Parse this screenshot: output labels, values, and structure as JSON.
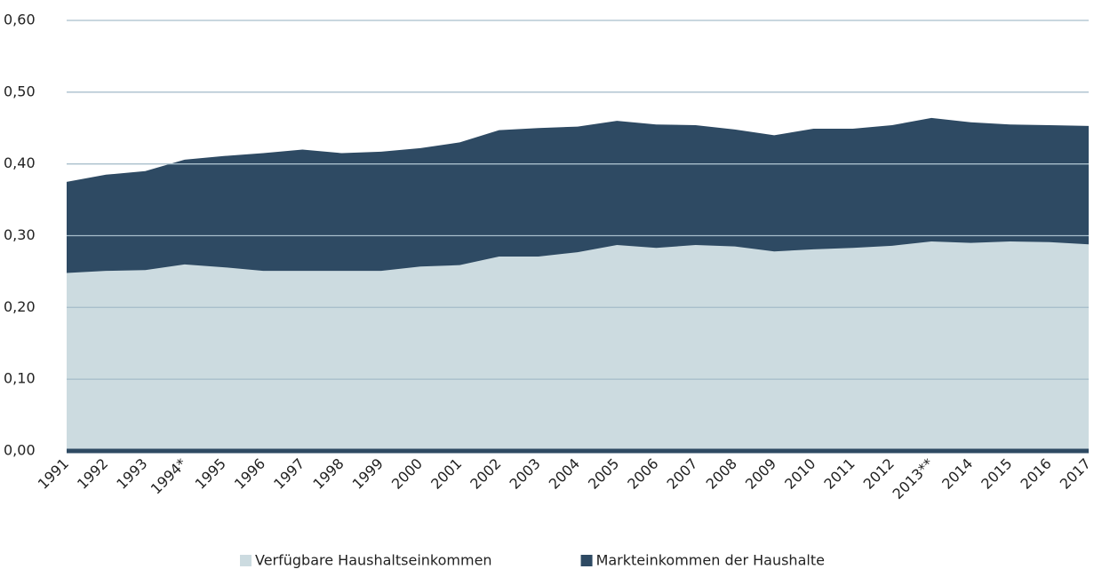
{
  "chart_data": {
    "type": "area",
    "categories": [
      "1991",
      "1992",
      "1993",
      "1994*",
      "1995",
      "1996",
      "1997",
      "1998",
      "1999",
      "2000",
      "2001",
      "2002",
      "2003",
      "2004",
      "2005",
      "2006",
      "2007",
      "2008",
      "2009",
      "2010",
      "2011",
      "2012",
      "2013**",
      "2014",
      "2015",
      "2016",
      "2017"
    ],
    "series": [
      {
        "name": "Verfügbare Haushaltseinkommen",
        "color": "#ccdbe0",
        "values": [
          0.248,
          0.251,
          0.252,
          0.26,
          0.256,
          0.251,
          0.251,
          0.251,
          0.251,
          0.257,
          0.259,
          0.271,
          0.271,
          0.277,
          0.287,
          0.283,
          0.287,
          0.285,
          0.278,
          0.281,
          0.283,
          0.286,
          0.292,
          0.29,
          0.292,
          0.291,
          0.288
        ]
      },
      {
        "name": "Markteinkommen der Haushalte",
        "color": "#2e4a63",
        "values": [
          0.375,
          0.385,
          0.39,
          0.406,
          0.411,
          0.415,
          0.42,
          0.415,
          0.417,
          0.422,
          0.43,
          0.447,
          0.45,
          0.452,
          0.46,
          0.455,
          0.454,
          0.448,
          0.44,
          0.449,
          0.449,
          0.454,
          0.464,
          0.458,
          0.455,
          0.454,
          0.453
        ]
      }
    ],
    "ylim": [
      0,
      0.6
    ],
    "yticks": [
      {
        "value": 0,
        "label": "0,00"
      },
      {
        "value": 0.1,
        "label": "0,10"
      },
      {
        "value": 0.2,
        "label": "0,20"
      },
      {
        "value": 0.3,
        "label": "0,30"
      },
      {
        "value": 0.4,
        "label": "0,40"
      },
      {
        "value": 0.5,
        "label": "0,50"
      },
      {
        "value": 0.6,
        "label": "0,60"
      }
    ],
    "grid": true
  }
}
